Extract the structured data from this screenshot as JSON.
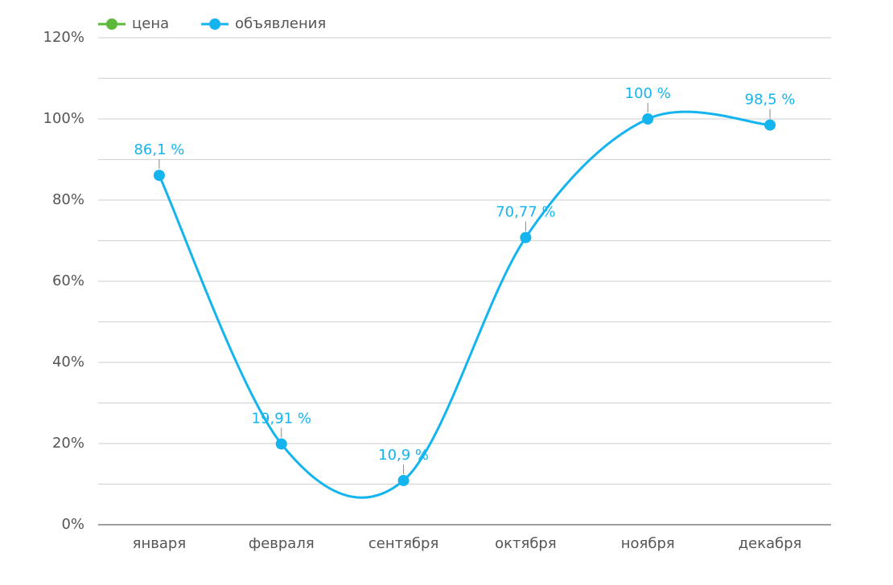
{
  "chart_data": {
    "type": "line",
    "categories": [
      "января",
      "февраля",
      "сентября",
      "октября",
      "ноября",
      "декабря"
    ],
    "series": [
      {
        "name": "цена",
        "color": "#5cb83a",
        "values": [
          null,
          null,
          null,
          null,
          null,
          null
        ]
      },
      {
        "name": "объявления",
        "color": "#14b4ef",
        "values": [
          86.1,
          19.91,
          10.9,
          70.77,
          100,
          98.5
        ],
        "value_labels": [
          "86,1 %",
          "19,91 %",
          "10,9 %",
          "70,77 %",
          "100 %",
          "98,5 %"
        ]
      }
    ],
    "ylim": [
      0,
      120
    ],
    "yticks": [
      {
        "value": 0,
        "label": "0%"
      },
      {
        "value": 20,
        "label": "20%"
      },
      {
        "value": 40,
        "label": "40%"
      },
      {
        "value": 60,
        "label": "60%"
      },
      {
        "value": 80,
        "label": "80%"
      },
      {
        "value": 100,
        "label": "100%"
      },
      {
        "value": 120,
        "label": "120%"
      }
    ],
    "minor_yticks": [
      10,
      30,
      50,
      70,
      90,
      110
    ],
    "grid": true,
    "smooth": true,
    "legend": "top-left"
  }
}
